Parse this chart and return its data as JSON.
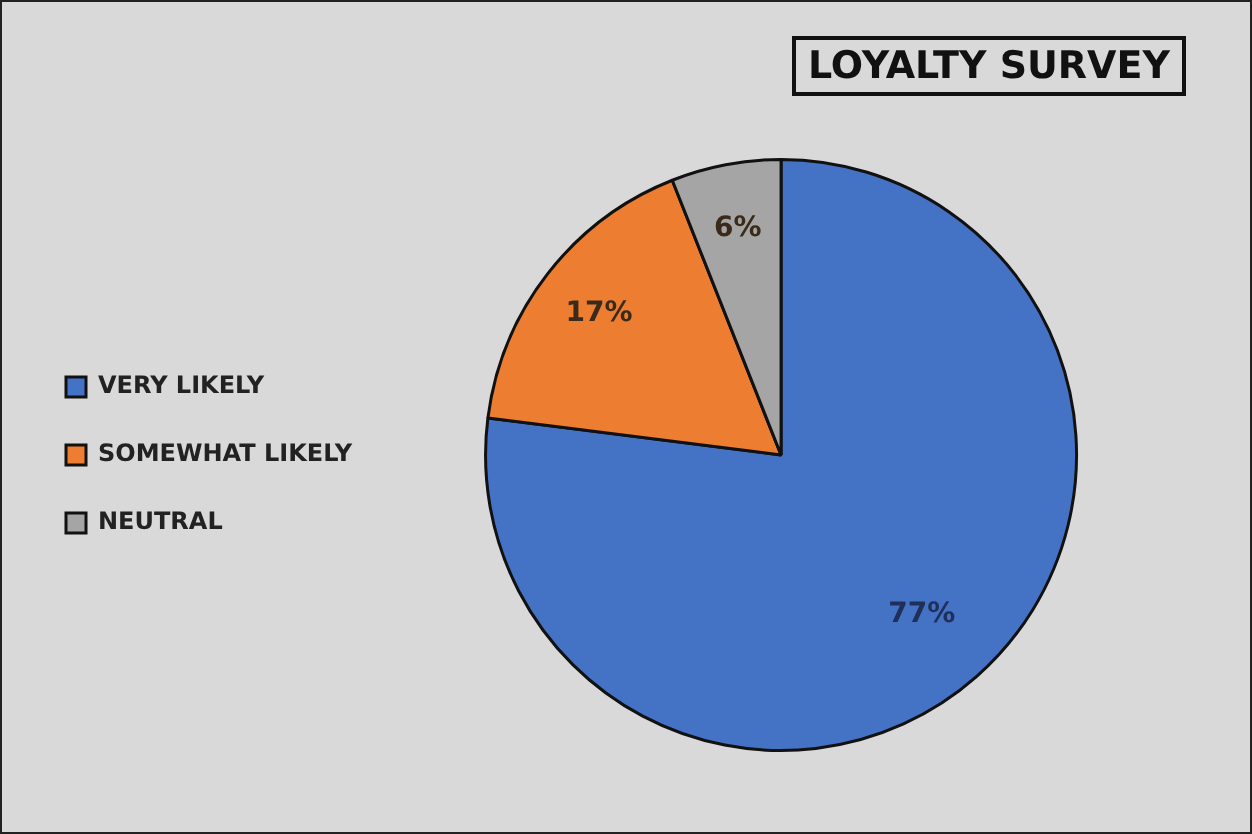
{
  "chart_data": {
    "type": "pie",
    "title": "LOYALTY SURVEY",
    "categories": [
      "VERY LIKELY",
      "SOMEWHAT LIKELY",
      "NEUTRAL"
    ],
    "values": [
      77,
      17,
      6
    ],
    "value_labels": [
      "77%",
      "17%",
      "6%"
    ],
    "colors": [
      "#4472c4",
      "#ed7d31",
      "#a5a5a5"
    ],
    "legend": "left"
  }
}
